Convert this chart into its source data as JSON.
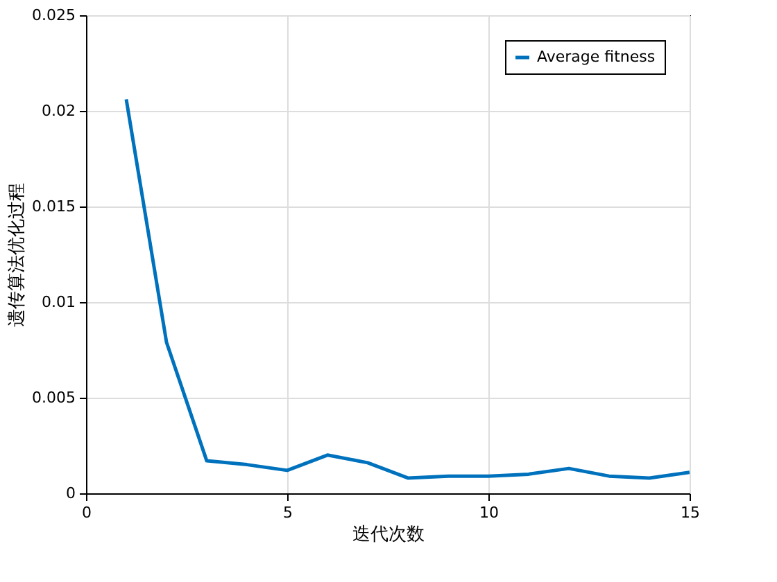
{
  "chart_data": {
    "type": "line",
    "xlabel": "迭代次数",
    "ylabel": "遗传算法优化过程",
    "x": [
      1,
      2,
      3,
      4,
      5,
      6,
      7,
      8,
      9,
      10,
      11,
      12,
      13,
      14,
      15
    ],
    "series": [
      {
        "name": "Average fitness",
        "color": "#0072bd",
        "values": [
          0.0206,
          0.0079,
          0.0017,
          0.0015,
          0.0012,
          0.002,
          0.0016,
          0.0008,
          0.0009,
          0.0009,
          0.001,
          0.0013,
          0.0009,
          0.0008,
          0.0011
        ]
      }
    ],
    "xlim": [
      0,
      15
    ],
    "xticks": [
      0,
      5,
      10,
      15
    ],
    "ylim": [
      0,
      0.025
    ],
    "yticks": [
      0,
      0.005,
      0.01,
      0.015,
      0.02,
      0.025
    ],
    "grid": true,
    "legend": "top right",
    "marker": "none",
    "line_style": "solid"
  }
}
